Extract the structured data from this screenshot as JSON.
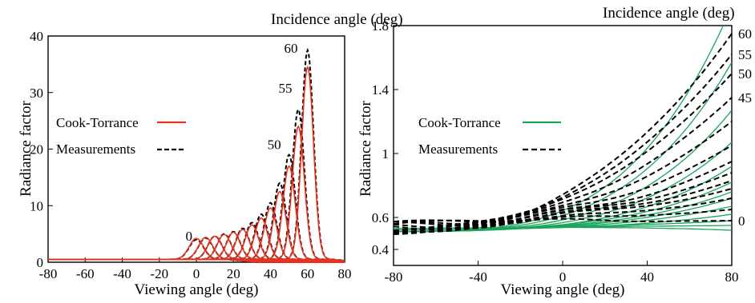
{
  "chart_data": [
    {
      "type": "line",
      "title": "Incidence angle (deg)",
      "xlabel": "Viewing angle  (deg)",
      "ylabel": "Radiance factor",
      "xlim": [
        -80,
        80
      ],
      "ylim": [
        0,
        40
      ],
      "xticks": [
        "-80",
        "-60",
        "-40",
        "-20",
        "0",
        "20",
        "40",
        "60",
        "80"
      ],
      "yticks": [
        "0",
        "10",
        "20",
        "30",
        "40"
      ],
      "grid": false,
      "legend_position": "center-left",
      "incidence_angles": [
        0,
        5,
        10,
        15,
        20,
        25,
        30,
        35,
        40,
        45,
        50,
        55,
        60
      ],
      "series": [
        {
          "name": "Cook-Torrance",
          "color": "#e8321e",
          "style": "solid",
          "peak_x": [
            0,
            5,
            10,
            15,
            20,
            25,
            30,
            35,
            40,
            45,
            50,
            55,
            60
          ],
          "peak_y": [
            4.2,
            4.4,
            4.6,
            4.9,
            5.3,
            5.8,
            6.6,
            7.8,
            9.6,
            12.5,
            17.0,
            24.0,
            34.5
          ],
          "baseline": 0.5
        },
        {
          "name": "Measurements",
          "color": "#000000",
          "style": "dashed",
          "peak_x": [
            0,
            5,
            10,
            15,
            20,
            25,
            30,
            35,
            40,
            45,
            50,
            55,
            60
          ],
          "peak_y": [
            4.0,
            4.3,
            4.6,
            5.0,
            5.4,
            6.0,
            7.0,
            8.5,
            10.5,
            14.0,
            19.0,
            27.0,
            37.5
          ],
          "baseline": 0.5
        }
      ],
      "annotations": [
        {
          "text": "0",
          "x": -4,
          "y": 3.8
        },
        {
          "text": "50",
          "x": 42,
          "y": 20
        },
        {
          "text": "55",
          "x": 48,
          "y": 30
        },
        {
          "text": "60",
          "x": 51,
          "y": 37
        }
      ]
    },
    {
      "type": "line",
      "title": "Incidence angle (deg)",
      "xlabel": "Viewing angle  (deg)",
      "ylabel": "Radiance factor",
      "xlim": [
        -80,
        80
      ],
      "ylim": [
        0.3,
        1.8
      ],
      "xticks": [
        "-80",
        "-40",
        "0",
        "40",
        "80"
      ],
      "yticks": [
        "0.4",
        "0.6",
        "1",
        "1.4",
        "1.8"
      ],
      "grid": false,
      "legend_position": "top-left",
      "incidence_angles": [
        0,
        5,
        10,
        15,
        20,
        25,
        30,
        35,
        40,
        45,
        50,
        55,
        60
      ],
      "series": [
        {
          "name": "Cook-Torrance",
          "color": "#1aa55a",
          "style": "solid",
          "start_y": [
            0.53,
            0.53,
            0.53,
            0.52,
            0.52,
            0.52,
            0.52,
            0.52,
            0.51,
            0.51,
            0.51,
            0.51,
            0.51
          ],
          "end_y": [
            0.5,
            0.53,
            0.56,
            0.6,
            0.65,
            0.7,
            0.74,
            0.8,
            0.9,
            1.05,
            1.25,
            1.55,
            1.9
          ]
        },
        {
          "name": "Measurements",
          "color": "#000000",
          "style": "dashed",
          "start_y": [
            0.56,
            0.56,
            0.55,
            0.55,
            0.54,
            0.54,
            0.53,
            0.53,
            0.52,
            0.52,
            0.52,
            0.51,
            0.5
          ],
          "end_y": [
            0.58,
            0.65,
            0.72,
            0.78,
            0.83,
            0.88,
            0.95,
            1.05,
            1.2,
            1.35,
            1.5,
            1.62,
            1.75
          ]
        }
      ],
      "right_labels": [
        {
          "text": "60",
          "y": 1.75
        },
        {
          "text": "55",
          "y": 1.62
        },
        {
          "text": "50",
          "y": 1.5
        },
        {
          "text": "45",
          "y": 1.35
        },
        {
          "text": "0",
          "y": 0.58
        }
      ]
    }
  ]
}
